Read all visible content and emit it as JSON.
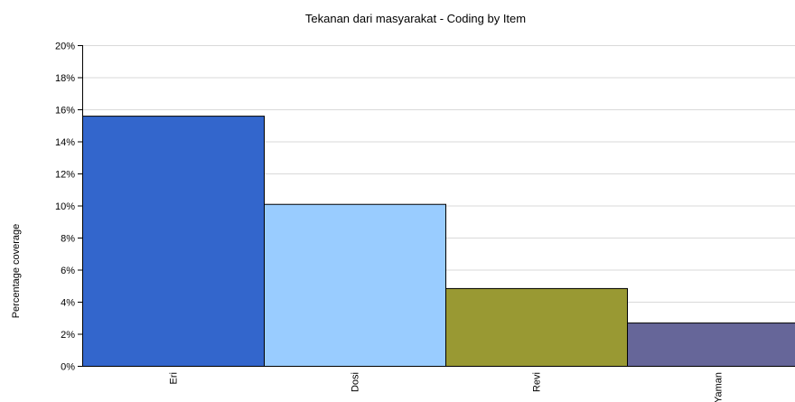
{
  "chart_data": {
    "type": "bar",
    "title": "Tekanan dari masyarakat - Coding by Item",
    "xlabel": "",
    "ylabel": "Percentage coverage",
    "categories": [
      "Eri",
      "Dosi",
      "Revi",
      "Yaman"
    ],
    "values": [
      15.6,
      10.1,
      4.85,
      2.7
    ],
    "colors": [
      "#3366cc",
      "#99ccff",
      "#999933",
      "#666699"
    ],
    "ylim": [
      0,
      20
    ],
    "yticks": [
      0,
      2,
      4,
      6,
      8,
      10,
      12,
      14,
      16,
      18,
      20
    ],
    "ytick_labels": [
      "0%",
      "2%",
      "4%",
      "6%",
      "8%",
      "10%",
      "12%",
      "14%",
      "16%",
      "18%",
      "20%"
    ],
    "grid": true,
    "legend": "none"
  }
}
